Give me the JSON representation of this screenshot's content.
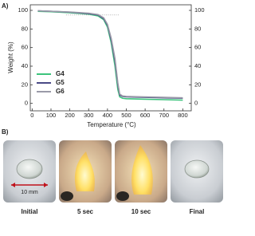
{
  "panel_labels": [
    "A)",
    "B)"
  ],
  "chart_data": {
    "type": "line",
    "x_label": "Temperature (°C)",
    "y_label": "Weight (%)",
    "x": [
      30,
      100,
      200,
      300,
      350,
      380,
      400,
      420,
      440,
      455,
      465,
      480,
      500,
      600,
      700,
      800
    ],
    "series": [
      {
        "name": "G4",
        "color": "#3cc47c",
        "values": [
          99,
          98.5,
          97.5,
          96,
          94,
          90,
          82,
          65,
          40,
          15,
          7,
          5.5,
          5,
          4.5,
          4,
          3.5
        ]
      },
      {
        "name": "G5",
        "color": "#4a4a86",
        "values": [
          99.5,
          99,
          98,
          96.5,
          95,
          91,
          84,
          68,
          45,
          20,
          9,
          7.5,
          7,
          6.5,
          6,
          5.5
        ]
      },
      {
        "name": "G6",
        "color": "#9a9aa8",
        "values": [
          99.5,
          99,
          98.2,
          97,
          95.5,
          92,
          85,
          70,
          48,
          22,
          10,
          8,
          7.5,
          7,
          6.5,
          6
        ]
      }
    ],
    "reference_line": {
      "y": 95,
      "x": [
        180,
        460
      ]
    },
    "xlim": [
      -10,
      845
    ],
    "xticks": [
      0,
      100,
      200,
      300,
      400,
      500,
      600,
      700,
      800
    ],
    "ylim": [
      -8,
      106
    ],
    "yticks": [
      0,
      20,
      40,
      60,
      80,
      100
    ],
    "y2lim": [
      -8,
      106
    ],
    "y2ticks": [
      0,
      20,
      40,
      60,
      80,
      100
    ],
    "legend": "lower-left"
  },
  "photos": [
    {
      "caption": "Initial"
    },
    {
      "caption": "5 sec"
    },
    {
      "caption": "10 sec"
    },
    {
      "caption": "Final"
    }
  ],
  "scale_bar": "10 mm"
}
